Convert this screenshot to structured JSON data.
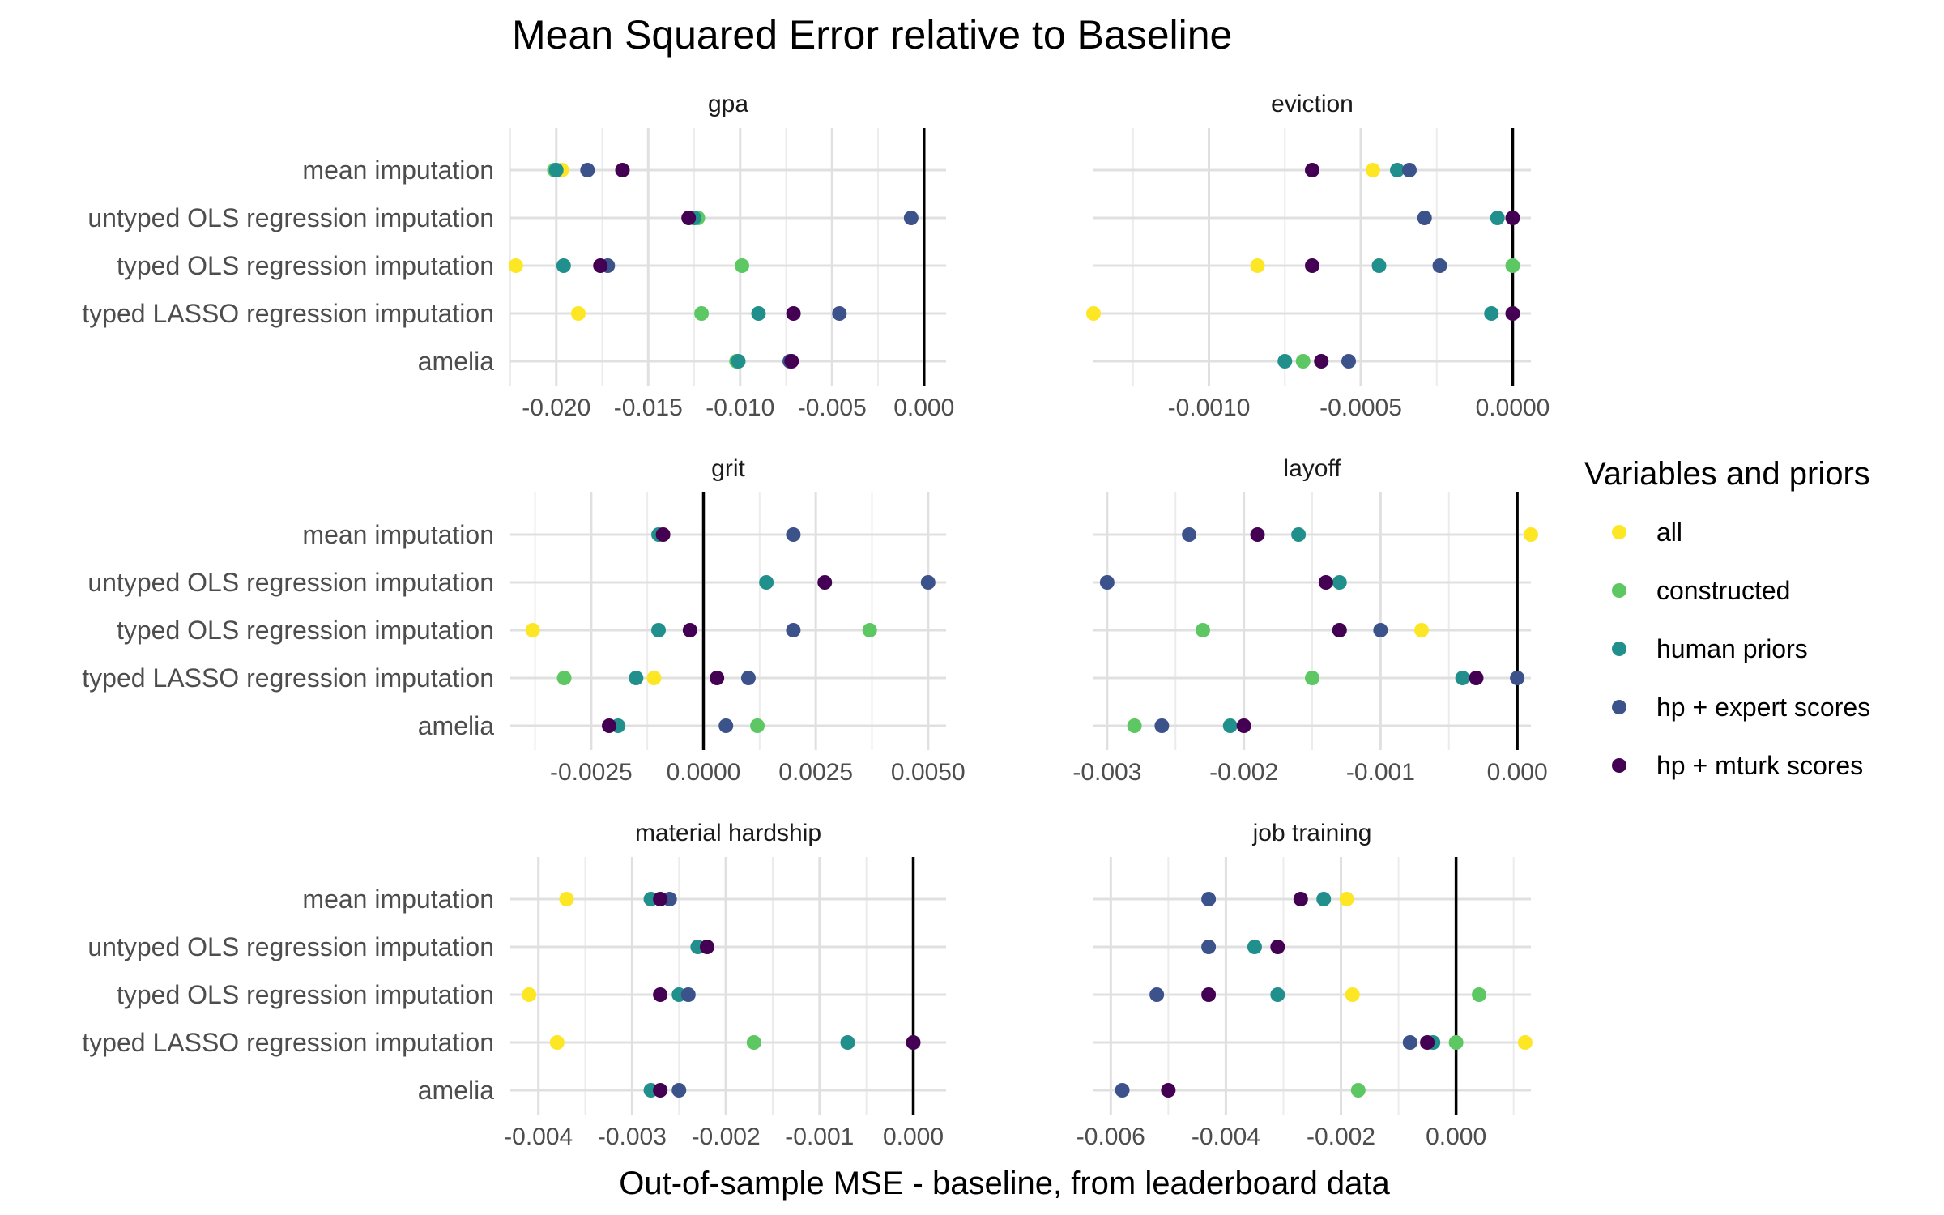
{
  "chart_data": {
    "type": "scatter",
    "title": "Mean Squared Error relative to Baseline",
    "xlabel": "Out-of-sample MSE - baseline, from leaderboard data",
    "ylabel": "",
    "categories": [
      "mean imputation",
      "untyped OLS regression imputation",
      "typed OLS regression imputation",
      "typed LASSO regression imputation",
      "amelia"
    ],
    "legend": {
      "title": "Variables and priors",
      "placement": "right",
      "entries": [
        {
          "name": "all",
          "color": "#FDE725"
        },
        {
          "name": "constructed",
          "color": "#5DC863"
        },
        {
          "name": "human priors",
          "color": "#21908C"
        },
        {
          "name": "hp + expert scores",
          "color": "#3B528B"
        },
        {
          "name": "hp + mturk scores",
          "color": "#440154"
        }
      ]
    },
    "grid": true,
    "reference_line_x": 0,
    "panels": [
      {
        "name": "gpa",
        "xlim": [
          -0.0225,
          0.0012
        ],
        "ticks": [
          -0.02,
          -0.015,
          -0.01,
          -0.005,
          0.0
        ],
        "tick_labels": [
          "-0.020",
          "-0.015",
          "-0.010",
          "-0.005",
          "0.000"
        ],
        "series": [
          {
            "name": "all",
            "values": [
              -0.0197,
              null,
              -0.0222,
              -0.0188,
              -0.0101
            ]
          },
          {
            "name": "constructed",
            "values": [
              -0.0201,
              -0.0123,
              -0.0099,
              -0.0121,
              -0.0102
            ]
          },
          {
            "name": "human priors",
            "values": [
              -0.02,
              -0.0125,
              -0.0196,
              -0.009,
              -0.0101
            ]
          },
          {
            "name": "hp + expert scores",
            "values": [
              -0.0183,
              -0.0007,
              -0.0172,
              -0.0046,
              -0.0073
            ]
          },
          {
            "name": "hp + mturk scores",
            "values": [
              -0.0164,
              -0.0128,
              -0.0176,
              -0.0071,
              -0.0072
            ]
          }
        ]
      },
      {
        "name": "eviction",
        "xlim": [
          -0.00138,
          6e-05
        ],
        "ticks": [
          -0.001,
          -0.0005,
          0.0
        ],
        "tick_labels": [
          "-0.0010",
          "-0.0005",
          "0.0000"
        ],
        "series": [
          {
            "name": "all",
            "values": [
              -0.00046,
              null,
              -0.00084,
              -0.00138,
              null
            ]
          },
          {
            "name": "constructed",
            "values": [
              null,
              null,
              0.0,
              null,
              -0.00069
            ]
          },
          {
            "name": "human priors",
            "values": [
              -0.00038,
              -5e-05,
              -0.00044,
              -7e-05,
              -0.00075
            ]
          },
          {
            "name": "hp + expert scores",
            "values": [
              -0.00034,
              -0.00029,
              -0.00024,
              null,
              -0.00054
            ]
          },
          {
            "name": "hp + mturk scores",
            "values": [
              -0.00066,
              0.0,
              -0.00066,
              0.0,
              -0.00063
            ]
          }
        ]
      },
      {
        "name": "grit",
        "xlim": [
          -0.0043,
          0.0054
        ],
        "ticks": [
          -0.0025,
          0.0,
          0.0025,
          0.005
        ],
        "tick_labels": [
          "-0.0025",
          "0.0000",
          "0.0025",
          "0.0050"
        ],
        "series": [
          {
            "name": "all",
            "values": [
              -0.0009,
              null,
              -0.0038,
              -0.0011,
              null
            ]
          },
          {
            "name": "constructed",
            "values": [
              null,
              null,
              0.0037,
              -0.0031,
              0.0012
            ]
          },
          {
            "name": "human priors",
            "values": [
              -0.001,
              0.0014,
              -0.001,
              -0.0015,
              -0.0019
            ]
          },
          {
            "name": "hp + expert scores",
            "values": [
              0.002,
              0.005,
              0.002,
              0.001,
              0.0005
            ]
          },
          {
            "name": "hp + mturk scores",
            "values": [
              -0.0009,
              0.0027,
              -0.0003,
              0.0003,
              -0.0021
            ]
          }
        ]
      },
      {
        "name": "layoff",
        "xlim": [
          -0.0031,
          0.0001
        ],
        "ticks": [
          -0.003,
          -0.002,
          -0.001,
          0.0
        ],
        "tick_labels": [
          "-0.003",
          "-0.002",
          "-0.001",
          "0.000"
        ],
        "series": [
          {
            "name": "all",
            "values": [
              0.0001,
              null,
              -0.0007,
              null,
              null
            ]
          },
          {
            "name": "constructed",
            "values": [
              null,
              null,
              -0.0023,
              -0.0015,
              -0.0028
            ]
          },
          {
            "name": "human priors",
            "values": [
              -0.0016,
              -0.0013,
              -0.0013,
              -0.0004,
              -0.0021
            ]
          },
          {
            "name": "hp + expert scores",
            "values": [
              -0.0024,
              -0.003,
              -0.001,
              0.0,
              -0.0026
            ]
          },
          {
            "name": "hp + mturk scores",
            "values": [
              -0.0019,
              -0.0014,
              -0.0013,
              -0.0003,
              -0.002
            ]
          }
        ]
      },
      {
        "name": "material hardship",
        "xlim": [
          -0.0043,
          0.00035
        ],
        "ticks": [
          -0.004,
          -0.003,
          -0.002,
          -0.001,
          0.0
        ],
        "tick_labels": [
          "-0.004",
          "-0.003",
          "-0.002",
          "-0.001",
          "0.000"
        ],
        "series": [
          {
            "name": "all",
            "values": [
              -0.0037,
              null,
              -0.0041,
              -0.0038,
              null
            ]
          },
          {
            "name": "constructed",
            "values": [
              null,
              null,
              null,
              -0.0017,
              null
            ]
          },
          {
            "name": "human priors",
            "values": [
              -0.0028,
              -0.0023,
              -0.0025,
              -0.0007,
              -0.0028
            ]
          },
          {
            "name": "hp + expert scores",
            "values": [
              -0.0026,
              null,
              -0.0024,
              null,
              -0.0025
            ]
          },
          {
            "name": "hp + mturk scores",
            "values": [
              -0.0027,
              -0.0022,
              -0.0027,
              0.0,
              -0.0027
            ]
          }
        ]
      },
      {
        "name": "job training",
        "xlim": [
          -0.0063,
          0.0013
        ],
        "ticks": [
          -0.006,
          -0.004,
          -0.002,
          0.0
        ],
        "tick_labels": [
          "-0.006",
          "-0.004",
          "-0.002",
          "0.000"
        ],
        "series": [
          {
            "name": "all",
            "values": [
              -0.0019,
              null,
              -0.0018,
              0.0012,
              null
            ]
          },
          {
            "name": "constructed",
            "values": [
              null,
              null,
              0.0004,
              0.0,
              -0.0017
            ]
          },
          {
            "name": "human priors",
            "values": [
              -0.0023,
              -0.0035,
              -0.0031,
              -0.0004,
              null
            ]
          },
          {
            "name": "hp + expert scores",
            "values": [
              -0.0043,
              -0.0043,
              -0.0052,
              -0.0008,
              -0.0058
            ]
          },
          {
            "name": "hp + mturk scores",
            "values": [
              -0.0027,
              -0.0031,
              -0.0043,
              -0.0005,
              -0.005
            ]
          }
        ]
      }
    ]
  }
}
